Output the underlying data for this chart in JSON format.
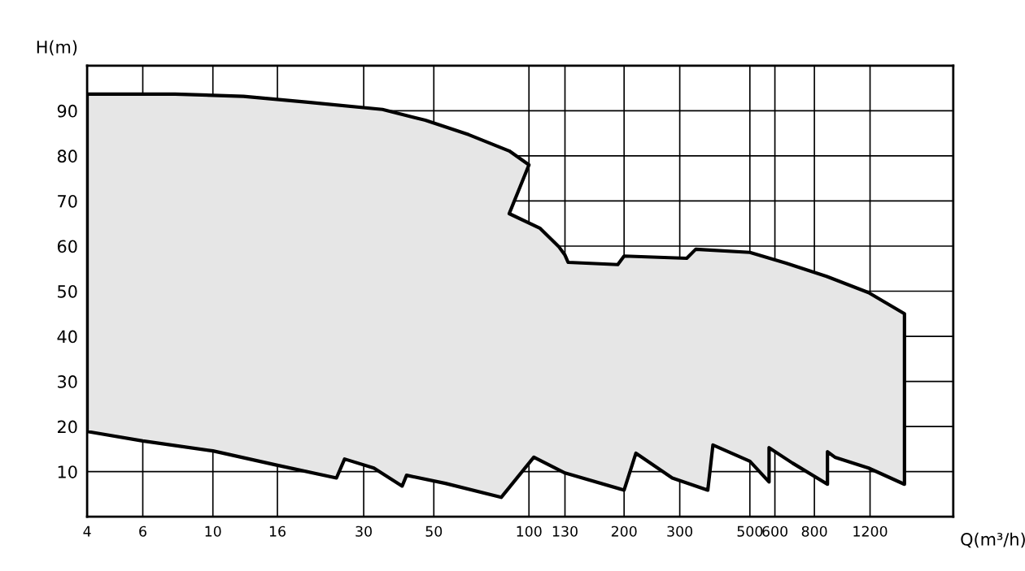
{
  "chart_data": {
    "type": "area",
    "xlabel": "Q(m³/h)",
    "ylabel": "H(m)",
    "log": "x",
    "xlim": [
      4,
      2200
    ],
    "ylim": [
      0,
      100
    ],
    "xticks": [
      4,
      6,
      10,
      16,
      30,
      50,
      100,
      130,
      200,
      300,
      500,
      600,
      800,
      1200
    ],
    "yticks": [
      10,
      20,
      30,
      40,
      50,
      60,
      70,
      80,
      90
    ],
    "grid": true,
    "series": [
      {
        "color": "#000000",
        "x": [
          4,
          7.6,
          12.5,
          20,
          34.4,
          47,
          64.5,
          86.6,
          100,
          86.6,
          108.2,
          124.5,
          130,
          133,
          191,
          200,
          315.6,
          337,
          500,
          651,
          874,
          1187,
          1542,
          1542,
          1187,
          929,
          880,
          880,
          682,
          575,
          575,
          500,
          382,
          368,
          284,
          218,
          200,
          130,
          103.6,
          81.7,
          54.4,
          41,
          39.7,
          32.3,
          26.1,
          24.6,
          15.8,
          10,
          6,
          4
        ],
        "values": [
          93.7,
          93.7,
          93.2,
          91.9,
          90.3,
          87.9,
          84.7,
          81.1,
          78.0,
          67.2,
          64.0,
          59.8,
          58.0,
          56.4,
          55.9,
          57.8,
          57.3,
          59.3,
          58.6,
          56.2,
          53.3,
          49.7,
          45.0,
          7.2,
          10.8,
          13.2,
          14.4,
          7.2,
          11.9,
          15.3,
          7.7,
          12.3,
          15.9,
          5.9,
          8.6,
          14.1,
          5.9,
          9.7,
          13.2,
          4.3,
          7.4,
          9.2,
          6.8,
          10.8,
          12.8,
          8.6,
          11.5,
          14.6,
          16.8,
          18.9
        ]
      }
    ]
  }
}
